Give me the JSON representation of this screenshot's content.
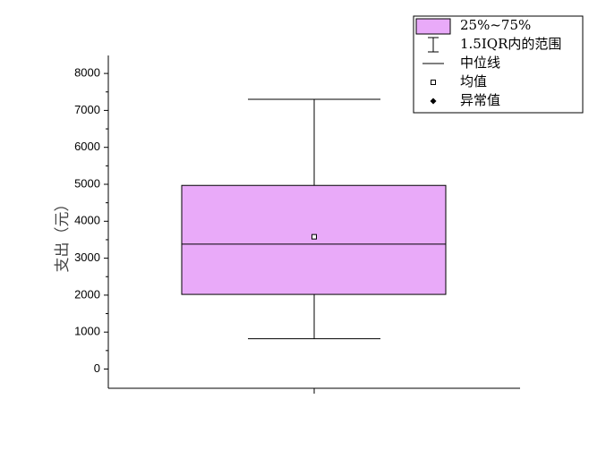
{
  "chart_data": {
    "type": "box",
    "ylabel": "支出（元）",
    "xlabel": "",
    "ylim": [
      -500,
      8700
    ],
    "yticks": [
      0,
      1000,
      2000,
      3000,
      4000,
      5000,
      6000,
      7000,
      8000
    ],
    "box": {
      "whisker_low": 820,
      "q1": 2020,
      "median": 3380,
      "q3": 4970,
      "whisker_high": 7300,
      "mean": 3580
    },
    "colors": {
      "box_fill": "#e9aaf9",
      "stroke": "#000000"
    },
    "legend": {
      "placement": "top-right",
      "items": [
        {
          "label": "25%~75%",
          "symbol": "box"
        },
        {
          "label": "1.5IQR内的范围",
          "symbol": "whisker"
        },
        {
          "label": "中位线",
          "symbol": "line"
        },
        {
          "label": "均值",
          "symbol": "open-square"
        },
        {
          "label": "异常值",
          "symbol": "diamond"
        }
      ]
    }
  }
}
